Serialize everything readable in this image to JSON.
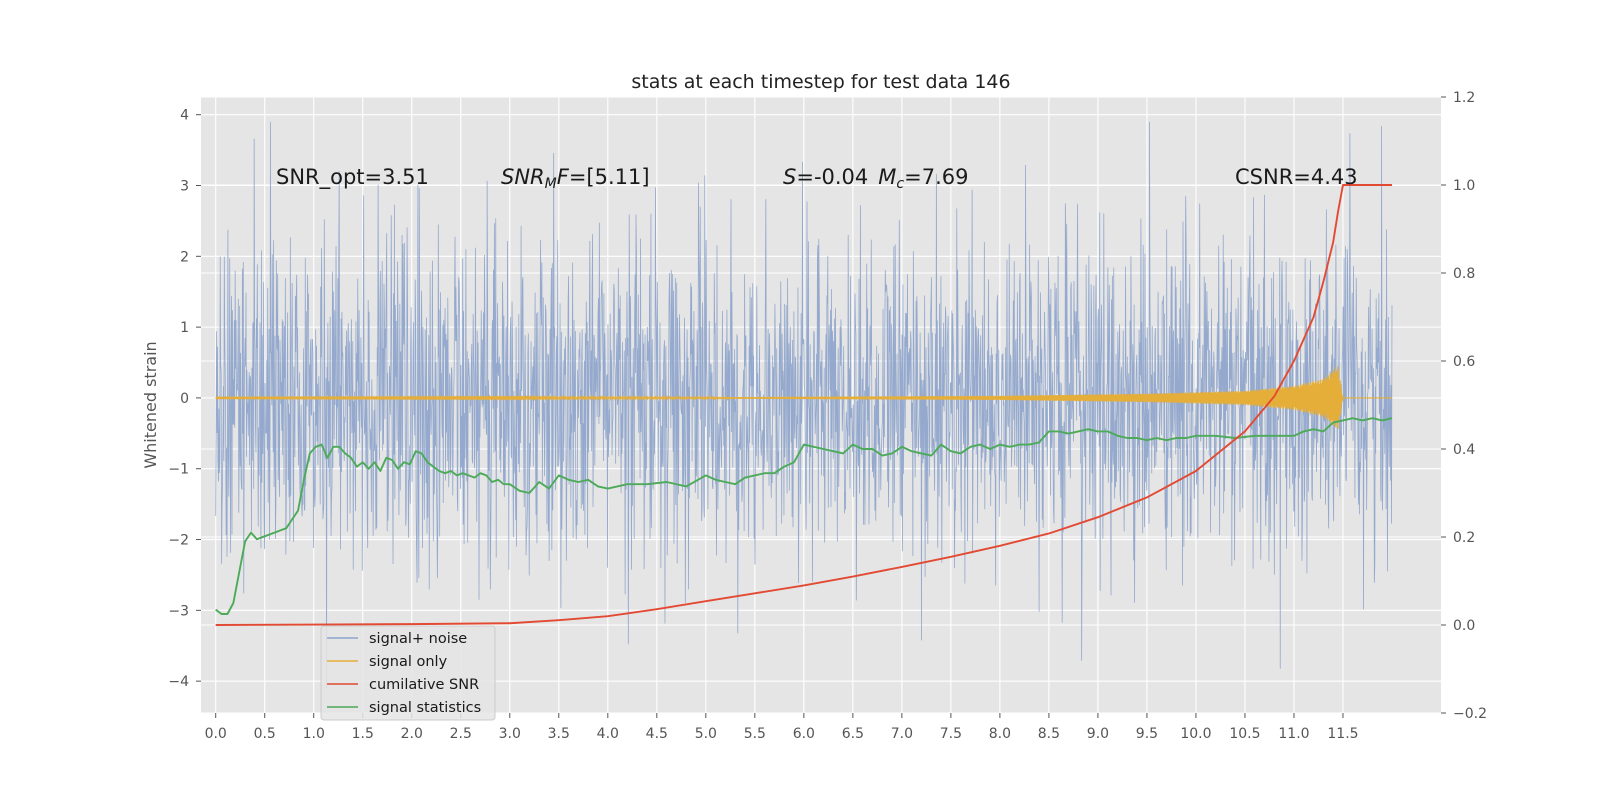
{
  "chart_data": {
    "type": "line",
    "title": "stats at each timestep for test data 146",
    "ylabel": "Whitened strain",
    "xlabel": "",
    "xlim": [
      -0.15,
      12.5
    ],
    "ylim": [
      -4.45,
      4.25
    ],
    "y2lim": [
      -0.2,
      1.2
    ],
    "grid": true,
    "legend_position": "lower-left",
    "x_ticks": [
      "0.0",
      "0.5",
      "1.0",
      "1.5",
      "2.0",
      "2.5",
      "3.0",
      "3.5",
      "4.0",
      "4.5",
      "5.0",
      "5.5",
      "6.0",
      "6.5",
      "7.0",
      "7.5",
      "8.0",
      "8.5",
      "9.0",
      "9.5",
      "10.0",
      "10.5",
      "11.0",
      "11.5"
    ],
    "y_ticks": [
      "4",
      "3",
      "2",
      "1",
      "0",
      "−1",
      "−2",
      "−3",
      "−4"
    ],
    "y2_ticks": [
      "1.2",
      "1.0",
      "0.8",
      "0.6",
      "0.4",
      "0.2",
      "0.0",
      "−0.2"
    ],
    "annotations": {
      "snr_opt": "SNR_opt=3.51",
      "snr_mf_sym": "SNR",
      "snr_mf_sub": "M",
      "snr_mf_sym2": "F",
      "snr_mf_val": "=[5.11]",
      "s_sym": "S",
      "s_val": "=-0.04",
      "mc_sym": "M",
      "mc_sub": "c",
      "mc_val": "=7.69",
      "csnr": "CSNR=4.43"
    },
    "series": [
      {
        "name": "signal+ noise",
        "color": "#8fa5cb",
        "axis": "left",
        "description_range": [
          -4.1,
          3.9
        ],
        "x_range": [
          0.0,
          12.0
        ]
      },
      {
        "name": "signal only",
        "color": "#e5ae38",
        "axis": "left",
        "x": [
          0.0,
          5.0,
          8.0,
          9.5,
          10.5,
          11.0,
          11.3,
          11.45,
          11.5,
          12.0
        ],
        "envelope": [
          0.005,
          0.01,
          0.03,
          0.06,
          0.1,
          0.17,
          0.27,
          0.45,
          0.0,
          0.0
        ]
      },
      {
        "name": "cumilative SNR",
        "color": "#e24a33",
        "axis": "right",
        "x": [
          0.0,
          1.0,
          2.0,
          3.0,
          3.5,
          4.0,
          4.5,
          5.0,
          5.5,
          6.0,
          6.5,
          7.0,
          7.5,
          8.0,
          8.5,
          9.0,
          9.5,
          10.0,
          10.5,
          10.8,
          11.0,
          11.2,
          11.3,
          11.4,
          11.45,
          11.5,
          12.0
        ],
        "y": [
          0.0,
          0.001,
          0.002,
          0.004,
          0.011,
          0.02,
          0.036,
          0.054,
          0.072,
          0.09,
          0.11,
          0.132,
          0.155,
          0.18,
          0.208,
          0.245,
          0.29,
          0.35,
          0.44,
          0.52,
          0.6,
          0.7,
          0.78,
          0.87,
          0.94,
          1.0,
          1.0
        ]
      },
      {
        "name": "signal statistics",
        "color": "#4caa59",
        "axis": "right",
        "x": [
          0.0,
          0.06,
          0.12,
          0.18,
          0.24,
          0.3,
          0.36,
          0.42,
          0.48,
          0.54,
          0.6,
          0.66,
          0.72,
          0.78,
          0.84,
          0.9,
          0.96,
          1.02,
          1.08,
          1.14,
          1.2,
          1.26,
          1.32,
          1.38,
          1.44,
          1.5,
          1.56,
          1.62,
          1.68,
          1.74,
          1.8,
          1.86,
          1.92,
          1.98,
          2.04,
          2.1,
          2.16,
          2.22,
          2.28,
          2.34,
          2.4,
          2.46,
          2.52,
          2.58,
          2.64,
          2.7,
          2.76,
          2.82,
          2.88,
          2.94,
          3.0,
          3.1,
          3.2,
          3.3,
          3.4,
          3.5,
          3.6,
          3.7,
          3.8,
          3.9,
          4.0,
          4.2,
          4.4,
          4.6,
          4.8,
          5.0,
          5.1,
          5.2,
          5.3,
          5.4,
          5.5,
          5.6,
          5.7,
          5.8,
          5.9,
          6.0,
          6.1,
          6.2,
          6.3,
          6.4,
          6.5,
          6.6,
          6.7,
          6.8,
          6.9,
          7.0,
          7.1,
          7.2,
          7.3,
          7.4,
          7.5,
          7.6,
          7.7,
          7.8,
          7.9,
          8.0,
          8.1,
          8.2,
          8.3,
          8.4,
          8.5,
          8.6,
          8.7,
          8.8,
          8.9,
          9.0,
          9.1,
          9.2,
          9.3,
          9.4,
          9.5,
          9.6,
          9.7,
          9.8,
          9.9,
          10.0,
          10.2,
          10.4,
          10.6,
          10.8,
          11.0,
          11.1,
          11.2,
          11.3,
          11.4,
          11.5,
          11.6,
          11.7,
          11.8,
          11.9,
          12.0
        ],
        "y": [
          0.035,
          0.025,
          0.025,
          0.05,
          0.12,
          0.19,
          0.21,
          0.195,
          0.2,
          0.205,
          0.21,
          0.215,
          0.22,
          0.24,
          0.26,
          0.33,
          0.39,
          0.405,
          0.41,
          0.38,
          0.405,
          0.405,
          0.39,
          0.38,
          0.36,
          0.37,
          0.355,
          0.37,
          0.35,
          0.38,
          0.375,
          0.355,
          0.37,
          0.365,
          0.395,
          0.39,
          0.37,
          0.36,
          0.35,
          0.345,
          0.35,
          0.34,
          0.345,
          0.34,
          0.335,
          0.345,
          0.34,
          0.325,
          0.33,
          0.32,
          0.32,
          0.305,
          0.3,
          0.325,
          0.31,
          0.34,
          0.33,
          0.325,
          0.33,
          0.315,
          0.31,
          0.32,
          0.32,
          0.325,
          0.315,
          0.34,
          0.33,
          0.325,
          0.32,
          0.335,
          0.34,
          0.345,
          0.345,
          0.36,
          0.37,
          0.41,
          0.405,
          0.4,
          0.395,
          0.39,
          0.41,
          0.4,
          0.4,
          0.385,
          0.39,
          0.405,
          0.395,
          0.39,
          0.385,
          0.41,
          0.395,
          0.39,
          0.405,
          0.41,
          0.4,
          0.41,
          0.405,
          0.41,
          0.41,
          0.415,
          0.44,
          0.44,
          0.435,
          0.44,
          0.445,
          0.44,
          0.44,
          0.43,
          0.425,
          0.425,
          0.42,
          0.425,
          0.42,
          0.425,
          0.425,
          0.43,
          0.43,
          0.425,
          0.43,
          0.43,
          0.43,
          0.44,
          0.445,
          0.44,
          0.46,
          0.465,
          0.47,
          0.465,
          0.47,
          0.465,
          0.47
        ]
      }
    ]
  }
}
